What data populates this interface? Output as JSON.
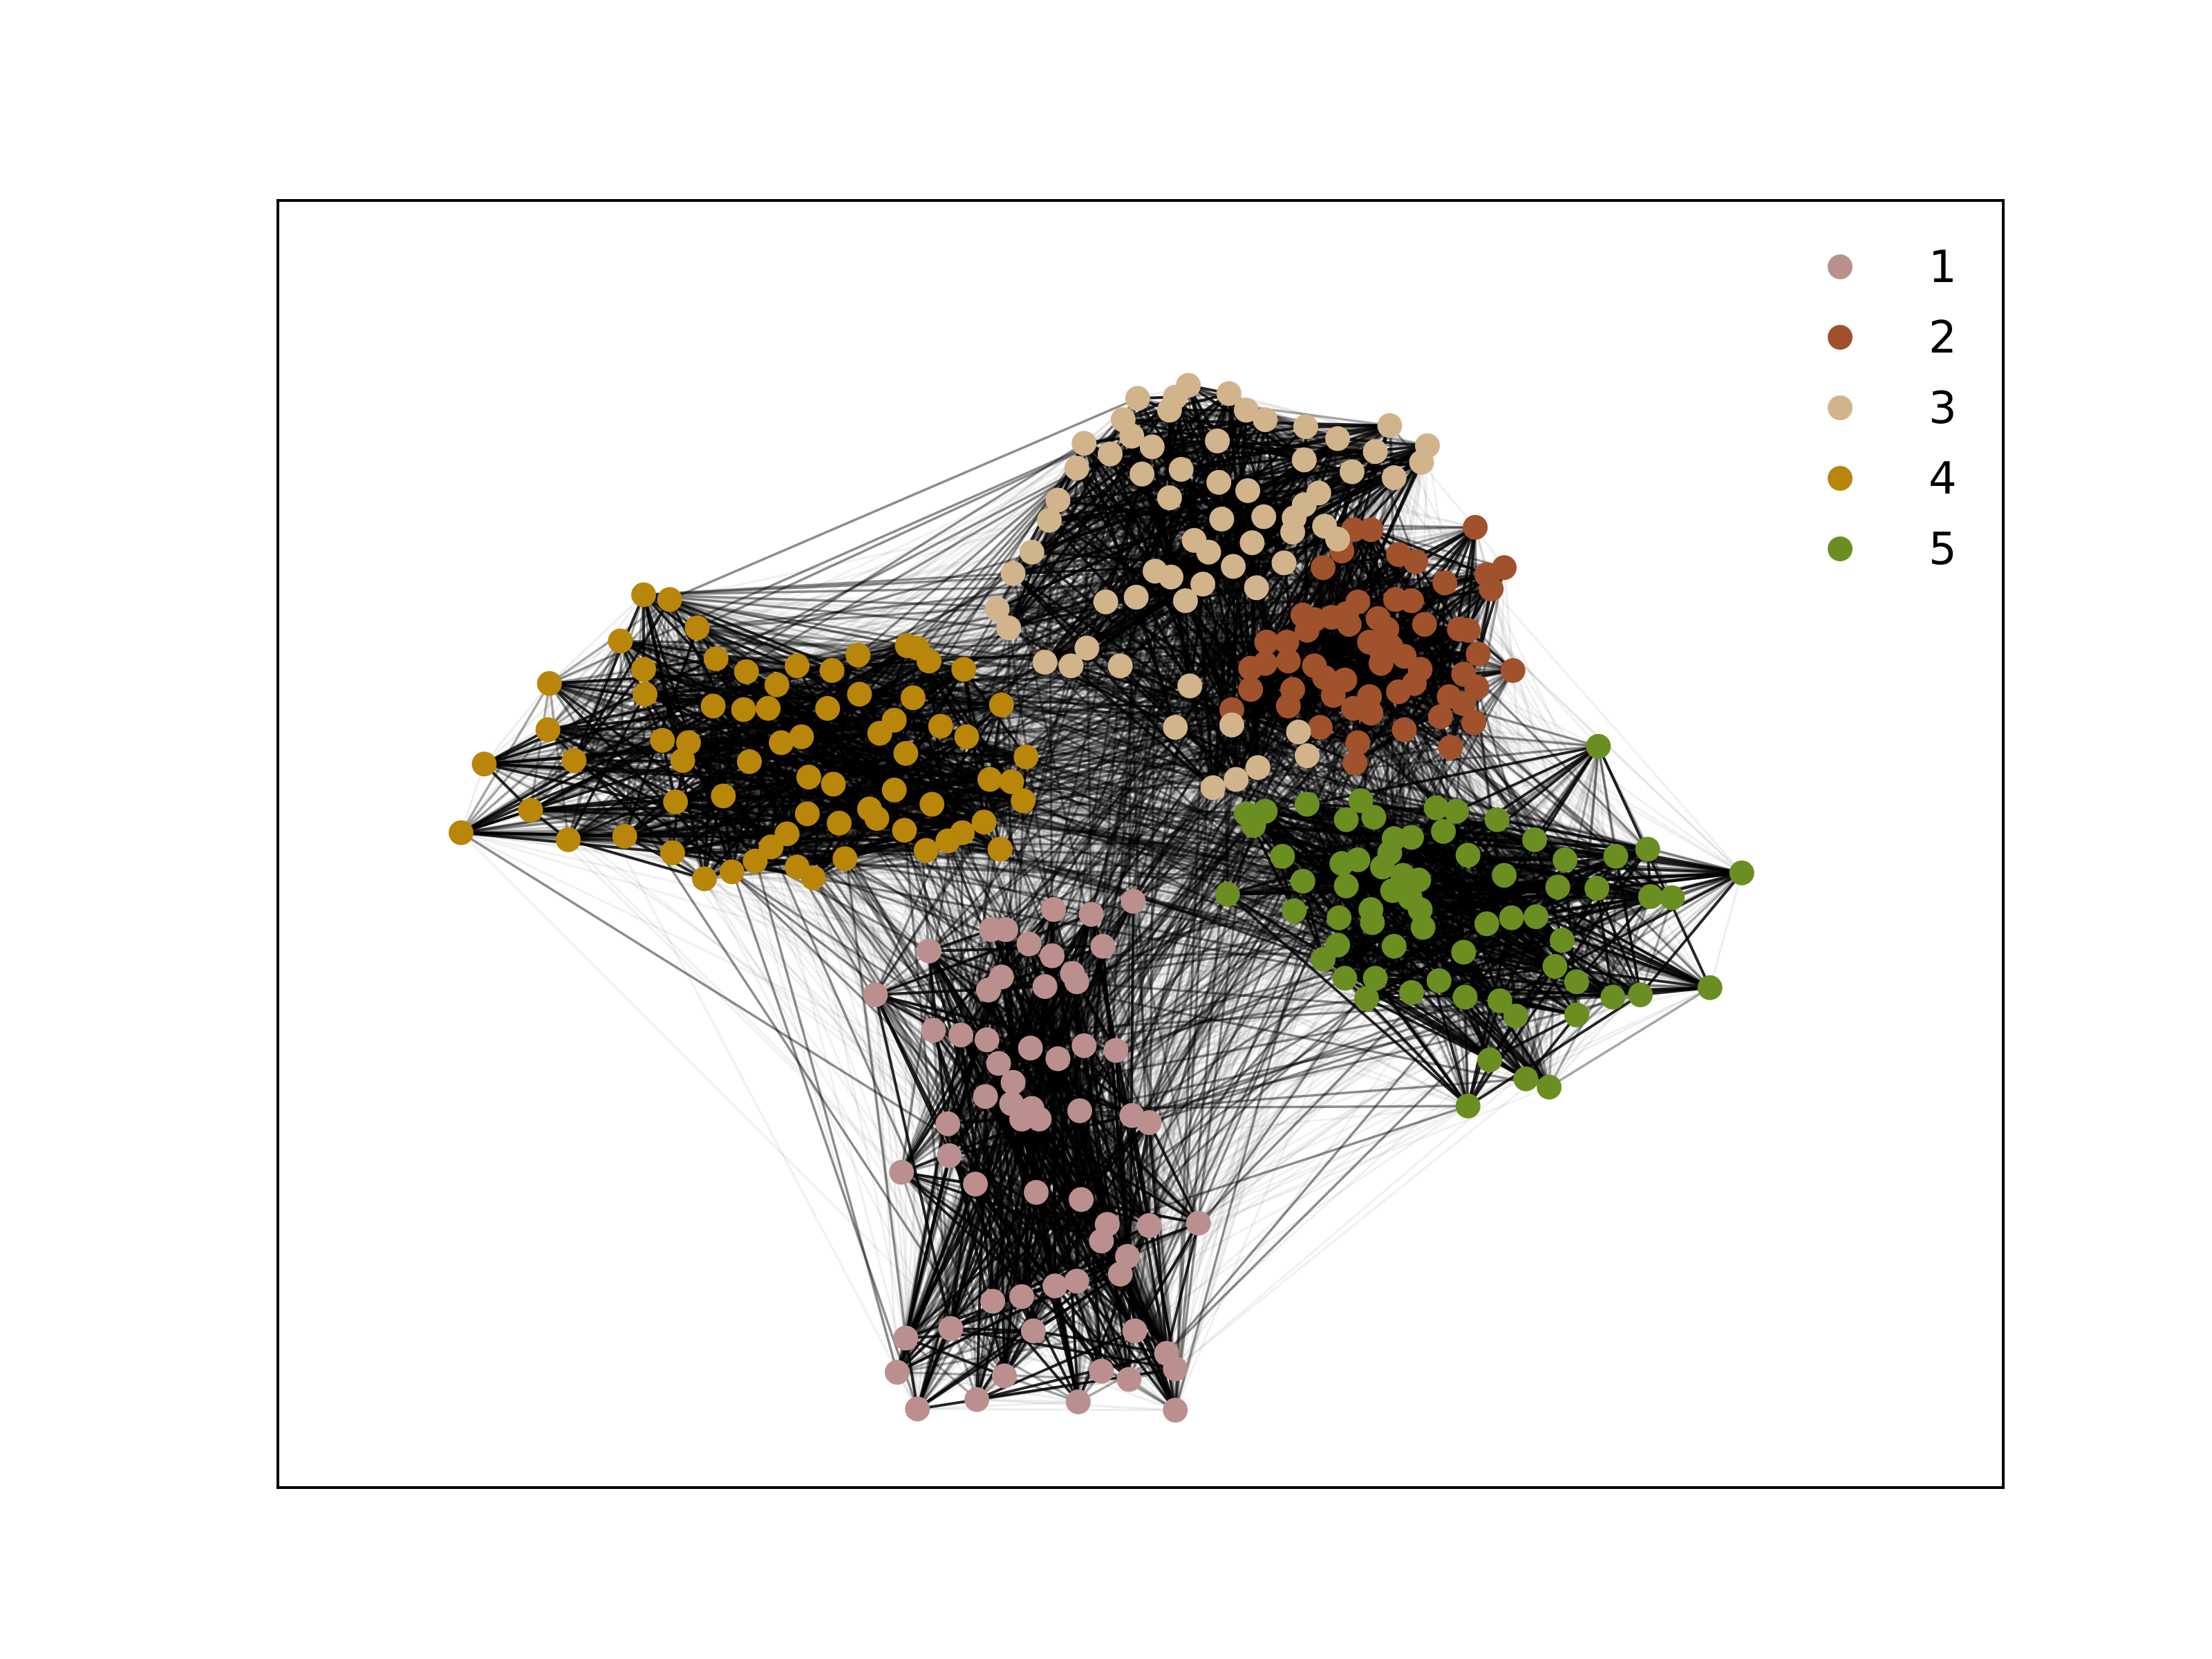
{
  "chart_data": {
    "type": "network",
    "xlim": [
      0,
      100
    ],
    "ylim": [
      0,
      100
    ],
    "legend_position": "top-right",
    "grid": false,
    "axis_ticks": false,
    "communities": [
      {
        "label": "1",
        "color": "#bc8f8f"
      },
      {
        "label": "2",
        "color": "#a0522d"
      },
      {
        "label": "3",
        "color": "#d2b48c"
      },
      {
        "label": "4",
        "color": "#b8860b"
      },
      {
        "label": "5",
        "color": "#6b8e23"
      }
    ],
    "nodes": [
      [
        49.5,
        35.7,
        1
      ],
      [
        46.6,
        34.6,
        1
      ],
      [
        44.0,
        35.0,
        1
      ],
      [
        39.7,
        33.3,
        1
      ],
      [
        40.7,
        33.3,
        1
      ],
      [
        42.3,
        32.1,
        1
      ],
      [
        43.9,
        31.1,
        1
      ],
      [
        47.4,
        31.9,
        1
      ],
      [
        45.3,
        29.6,
        1
      ],
      [
        45.6,
        28.9,
        1
      ],
      [
        43.4,
        28.5,
        1
      ],
      [
        40.4,
        29.3,
        1
      ],
      [
        39.5,
        28.2,
        1
      ],
      [
        35.4,
        31.5,
        1
      ],
      [
        31.7,
        27.8,
        1
      ],
      [
        35.7,
        24.8,
        1
      ],
      [
        37.6,
        24.4,
        1
      ],
      [
        39.4,
        24.0,
        1
      ],
      [
        42.4,
        23.3,
        1
      ],
      [
        46.1,
        23.5,
        1
      ],
      [
        48.3,
        23.1,
        1
      ],
      [
        44.3,
        22.4,
        1
      ],
      [
        40.2,
        22.0,
        1
      ],
      [
        41.2,
        20.4,
        1
      ],
      [
        39.3,
        19.2,
        1
      ],
      [
        41.1,
        18.6,
        1
      ],
      [
        42.5,
        18.2,
        1
      ],
      [
        45.8,
        18.0,
        1
      ],
      [
        49.4,
        17.6,
        1
      ],
      [
        50.6,
        17.0,
        1
      ],
      [
        41.8,
        17.3,
        1
      ],
      [
        43.0,
        17.3,
        1
      ],
      [
        36.7,
        16.9,
        1
      ],
      [
        36.8,
        14.2,
        1
      ],
      [
        33.5,
        12.8,
        1
      ],
      [
        38.6,
        11.8,
        1
      ],
      [
        42.8,
        11.1,
        1
      ],
      [
        45.9,
        10.5,
        1
      ],
      [
        47.7,
        8.4,
        1
      ],
      [
        50.6,
        8.3,
        1
      ],
      [
        54.0,
        8.5,
        1
      ],
      [
        47.3,
        7.0,
        1
      ],
      [
        49.1,
        5.7,
        1
      ],
      [
        48.6,
        4.2,
        1
      ],
      [
        45.6,
        3.6,
        1
      ],
      [
        44.1,
        3.2,
        1
      ],
      [
        41.8,
        2.3,
        1
      ],
      [
        39.8,
        1.9,
        1
      ],
      [
        42.6,
        -0.6,
        1
      ],
      [
        36.9,
        -0.4,
        1
      ],
      [
        33.8,
        -1.2,
        1
      ],
      [
        33.2,
        -4.1,
        1
      ],
      [
        34.6,
        -7.2,
        1
      ],
      [
        38.7,
        -6.4,
        1
      ],
      [
        40.6,
        -4.4,
        1
      ],
      [
        45.7,
        -6.6,
        1
      ],
      [
        47.3,
        -4.0,
        1
      ],
      [
        49.6,
        -0.6,
        1
      ],
      [
        51.8,
        -2.5,
        1
      ],
      [
        52.4,
        -3.8,
        1
      ],
      [
        49.2,
        -4.7,
        1
      ],
      [
        52.4,
        -7.3,
        1
      ],
      [
        62.7,
        54.6,
        2
      ],
      [
        62.6,
        63.9,
        2
      ],
      [
        63.9,
        65.3,
        2
      ],
      [
        64.7,
        67.1,
        2
      ],
      [
        65.9,
        67.1,
        2
      ],
      [
        73.1,
        67.3,
        2
      ],
      [
        73.9,
        63.3,
        2
      ],
      [
        75.1,
        63.9,
        2
      ],
      [
        72.6,
        58.6,
        2
      ],
      [
        67.8,
        65.0,
        2
      ],
      [
        69.0,
        64.4,
        2
      ],
      [
        71.0,
        62.6,
        2
      ],
      [
        67.6,
        61.2,
        2
      ],
      [
        66.6,
        56.9,
        2
      ],
      [
        65.8,
        57.6,
        2
      ],
      [
        63.2,
        59.7,
        2
      ],
      [
        62.0,
        59.5,
        2
      ],
      [
        61.2,
        59.9,
        2
      ],
      [
        61.5,
        58.6,
        2
      ],
      [
        60.1,
        57.6,
        2
      ],
      [
        64.4,
        59.1,
        2
      ],
      [
        64.2,
        60.0,
        2
      ],
      [
        65.0,
        61.0,
        2
      ],
      [
        66.4,
        59.6,
        2
      ],
      [
        67.0,
        58.7,
        2
      ],
      [
        68.7,
        61.1,
        2
      ],
      [
        69.6,
        59.1,
        2
      ],
      [
        72.0,
        58.7,
        2
      ],
      [
        74.2,
        62.1,
        2
      ],
      [
        73.3,
        56.6,
        2
      ],
      [
        72.3,
        54.9,
        2
      ],
      [
        75.7,
        55.2,
        2
      ],
      [
        73.2,
        53.8,
        2
      ],
      [
        70.7,
        51.3,
        2
      ],
      [
        72.3,
        52.4,
        2
      ],
      [
        71.3,
        53.0,
        2
      ],
      [
        68.9,
        54.1,
        2
      ],
      [
        67.8,
        53.4,
        2
      ],
      [
        67.3,
        57.2,
        2
      ],
      [
        66.6,
        55.8,
        2
      ],
      [
        64.1,
        54.4,
        2
      ],
      [
        62.0,
        55.6,
        2
      ],
      [
        60.2,
        56.0,
        2
      ],
      [
        58.7,
        57.6,
        2
      ],
      [
        57.6,
        55.4,
        2
      ],
      [
        57.6,
        53.6,
        2
      ],
      [
        60.5,
        53.6,
        2
      ],
      [
        63.3,
        53.1,
        2
      ],
      [
        65.8,
        53.0,
        2
      ],
      [
        68.2,
        50.2,
        2
      ],
      [
        71.4,
        48.7,
        2
      ],
      [
        73.0,
        50.8,
        2
      ],
      [
        65.0,
        49.1,
        2
      ],
      [
        64.7,
        52.0,
        2
      ],
      [
        69.3,
        55.3,
        2
      ],
      [
        68.2,
        56.4,
        2
      ],
      [
        58.6,
        55.8,
        2
      ],
      [
        65.9,
        51.6,
        2
      ],
      [
        62.4,
        50.4,
        2
      ],
      [
        64.8,
        47.4,
        2
      ],
      [
        60.2,
        52.2,
        2
      ],
      [
        56.3,
        51.9,
        2
      ],
      [
        52.4,
        78.3,
        3
      ],
      [
        49.4,
        75.0,
        3
      ],
      [
        55.3,
        74.6,
        3
      ],
      [
        61.3,
        73.0,
        3
      ],
      [
        64.6,
        72.0,
        3
      ],
      [
        67.5,
        71.5,
        3
      ],
      [
        69.4,
        72.8,
        3
      ],
      [
        69.8,
        74.2,
        3
      ],
      [
        67.2,
        75.9,
        3
      ],
      [
        66.2,
        73.7,
        3
      ],
      [
        63.6,
        74.8,
        3
      ],
      [
        61.4,
        75.8,
        3
      ],
      [
        58.6,
        76.4,
        3
      ],
      [
        57.3,
        77.2,
        3
      ],
      [
        56.1,
        78.6,
        3
      ],
      [
        53.3,
        79.3,
        3
      ],
      [
        52.0,
        77.2,
        3
      ],
      [
        49.8,
        78.2,
        3
      ],
      [
        48.8,
        76.4,
        3
      ],
      [
        50.8,
        74.1,
        3
      ],
      [
        52.8,
        72.2,
        3
      ],
      [
        55.4,
        71.1,
        3
      ],
      [
        57.4,
        70.4,
        3
      ],
      [
        58.5,
        68.2,
        3
      ],
      [
        60.6,
        68.1,
        3
      ],
      [
        57.7,
        66.0,
        3
      ],
      [
        54.7,
        65.2,
        3
      ],
      [
        53.7,
        66.2,
        3
      ],
      [
        52.1,
        63.1,
        3
      ],
      [
        51.0,
        63.6,
        3
      ],
      [
        49.7,
        61.4,
        3
      ],
      [
        47.6,
        61.0,
        3
      ],
      [
        53.1,
        61.1,
        3
      ],
      [
        54.3,
        62.5,
        3
      ],
      [
        56.4,
        64.0,
        3
      ],
      [
        58.0,
        62.2,
        3
      ],
      [
        59.9,
        64.3,
        3
      ],
      [
        60.5,
        66.9,
        3
      ],
      [
        61.3,
        69.2,
        3
      ],
      [
        62.3,
        70.2,
        3
      ],
      [
        62.7,
        67.4,
        3
      ],
      [
        63.6,
        66.3,
        3
      ],
      [
        55.6,
        68.0,
        3
      ],
      [
        52.0,
        69.8,
        3
      ],
      [
        50.1,
        71.8,
        3
      ],
      [
        47.9,
        73.5,
        3
      ],
      [
        46.1,
        74.4,
        3
      ],
      [
        45.6,
        72.3,
        3
      ],
      [
        44.3,
        69.6,
        3
      ],
      [
        43.7,
        67.9,
        3
      ],
      [
        42.5,
        65.2,
        3
      ],
      [
        41.2,
        63.4,
        3
      ],
      [
        40.1,
        60.4,
        3
      ],
      [
        40.9,
        58.8,
        3
      ],
      [
        43.4,
        55.9,
        3
      ],
      [
        45.2,
        55.6,
        3
      ],
      [
        46.3,
        57.1,
        3
      ],
      [
        48.6,
        55.6,
        3
      ],
      [
        53.4,
        53.9,
        3
      ],
      [
        56.3,
        50.6,
        3
      ],
      [
        52.4,
        50.4,
        3
      ],
      [
        60.9,
        50.0,
        3
      ],
      [
        61.5,
        48.0,
        3
      ],
      [
        58.1,
        47.0,
        3
      ],
      [
        56.6,
        46.0,
        3
      ],
      [
        55.0,
        45.3,
        3
      ],
      [
        3.1,
        41.5,
        4
      ],
      [
        4.7,
        47.3,
        4
      ],
      [
        7.9,
        43.4,
        4
      ],
      [
        10.5,
        40.9,
        4
      ],
      [
        14.4,
        41.2,
        4
      ],
      [
        17.7,
        39.8,
        4
      ],
      [
        19.9,
        37.6,
        4
      ],
      [
        21.8,
        38.2,
        4
      ],
      [
        24.5,
        40.3,
        4
      ],
      [
        25.6,
        41.4,
        4
      ],
      [
        26.3,
        38.6,
        4
      ],
      [
        27.4,
        37.7,
        4
      ],
      [
        29.6,
        39.3,
        4
      ],
      [
        29.2,
        42.3,
        4
      ],
      [
        31.8,
        42.7,
        4
      ],
      [
        33.7,
        41.7,
        4
      ],
      [
        35.2,
        40.0,
        4
      ],
      [
        36.7,
        40.8,
        4
      ],
      [
        37.7,
        41.5,
        4
      ],
      [
        40.3,
        40.1,
        4
      ],
      [
        39.2,
        42.4,
        4
      ],
      [
        35.6,
        43.9,
        4
      ],
      [
        33.0,
        45.1,
        4
      ],
      [
        31.3,
        43.5,
        4
      ],
      [
        28.8,
        45.6,
        4
      ],
      [
        27.1,
        46.2,
        4
      ],
      [
        25.2,
        49.1,
        4
      ],
      [
        24.3,
        52.0,
        4
      ],
      [
        22.6,
        51.9,
        4
      ],
      [
        20.5,
        52.2,
        4
      ],
      [
        18.8,
        49.1,
        4
      ],
      [
        17.0,
        49.3,
        4
      ],
      [
        15.8,
        53.2,
        4
      ],
      [
        15.7,
        55.3,
        4
      ],
      [
        14.1,
        57.7,
        4
      ],
      [
        15.7,
        61.6,
        4
      ],
      [
        17.5,
        61.2,
        4
      ],
      [
        19.4,
        58.8,
        4
      ],
      [
        20.7,
        56.2,
        4
      ],
      [
        22.8,
        55.1,
        4
      ],
      [
        24.9,
        54.0,
        4
      ],
      [
        26.3,
        55.6,
        4
      ],
      [
        28.7,
        55.2,
        4
      ],
      [
        30.6,
        53.2,
        4
      ],
      [
        32.0,
        49.9,
        4
      ],
      [
        33.8,
        48.2,
        4
      ],
      [
        33.0,
        51.0,
        4
      ],
      [
        34.3,
        52.9,
        4
      ],
      [
        36.2,
        50.5,
        4
      ],
      [
        38.0,
        49.6,
        4
      ],
      [
        39.6,
        46.0,
        4
      ],
      [
        41.9,
        44.2,
        4
      ],
      [
        41.1,
        45.8,
        4
      ],
      [
        42.1,
        47.9,
        4
      ],
      [
        40.4,
        52.3,
        4
      ],
      [
        37.8,
        55.3,
        4
      ],
      [
        34.6,
        57.1,
        4
      ],
      [
        33.9,
        57.3,
        4
      ],
      [
        35.4,
        56.0,
        4
      ],
      [
        30.5,
        56.5,
        4
      ],
      [
        28.4,
        52.0,
        4
      ],
      [
        26.6,
        49.6,
        4
      ],
      [
        23.0,
        47.5,
        4
      ],
      [
        21.2,
        44.6,
        4
      ],
      [
        17.9,
        44.1,
        4
      ],
      [
        10.9,
        47.6,
        4
      ],
      [
        9.1,
        50.2,
        4
      ],
      [
        9.2,
        54.1,
        4
      ],
      [
        18.4,
        47.6,
        4
      ],
      [
        27.0,
        43.1,
        4
      ],
      [
        23.4,
        39.1,
        4
      ],
      [
        56.0,
        36.3,
        5
      ],
      [
        58.6,
        43.3,
        5
      ],
      [
        57.8,
        42.1,
        5
      ],
      [
        57.3,
        43.1,
        5
      ],
      [
        59.8,
        39.5,
        5
      ],
      [
        61.5,
        43.9,
        5
      ],
      [
        64.2,
        42.6,
        5
      ],
      [
        65.2,
        44.2,
        5
      ],
      [
        66.1,
        42.8,
        5
      ],
      [
        67.5,
        41.0,
        5
      ],
      [
        67.2,
        39.8,
        5
      ],
      [
        68.7,
        41.1,
        5
      ],
      [
        70.4,
        43.6,
        5
      ],
      [
        70.9,
        41.6,
        5
      ],
      [
        71.8,
        43.3,
        5
      ],
      [
        74.6,
        42.6,
        5
      ],
      [
        77.2,
        40.9,
        5
      ],
      [
        79.3,
        39.2,
        5
      ],
      [
        81.6,
        48.8,
        5
      ],
      [
        85.0,
        40.1,
        5
      ],
      [
        82.8,
        39.5,
        5
      ],
      [
        81.5,
        36.8,
        5
      ],
      [
        78.8,
        36.9,
        5
      ],
      [
        75.1,
        37.9,
        5
      ],
      [
        72.6,
        39.6,
        5
      ],
      [
        69.2,
        37.5,
        5
      ],
      [
        68.1,
        37.9,
        5
      ],
      [
        66.7,
        38.6,
        5
      ],
      [
        65.0,
        39.2,
        5
      ],
      [
        63.9,
        38.9,
        5
      ],
      [
        64.2,
        37.0,
        5
      ],
      [
        61.2,
        37.4,
        5
      ],
      [
        60.6,
        34.9,
        5
      ],
      [
        65.9,
        35.0,
        5
      ],
      [
        67.4,
        36.6,
        5
      ],
      [
        68.6,
        36.0,
        5
      ],
      [
        69.5,
        33.5,
        5
      ],
      [
        69.3,
        35.0,
        5
      ],
      [
        67.5,
        31.9,
        5
      ],
      [
        66.0,
        33.9,
        5
      ],
      [
        63.7,
        34.3,
        5
      ],
      [
        63.6,
        32.0,
        5
      ],
      [
        62.6,
        30.8,
        5
      ],
      [
        64.1,
        29.2,
        5
      ],
      [
        65.6,
        27.5,
        5
      ],
      [
        66.2,
        29.2,
        5
      ],
      [
        68.7,
        28.0,
        5
      ],
      [
        70.6,
        29.0,
        5
      ],
      [
        72.3,
        31.4,
        5
      ],
      [
        73.9,
        33.8,
        5
      ],
      [
        75.6,
        34.3,
        5
      ],
      [
        77.3,
        34.4,
        5
      ],
      [
        79.1,
        32.4,
        5
      ],
      [
        78.6,
        30.2,
        5
      ],
      [
        80.1,
        28.9,
        5
      ],
      [
        82.6,
        27.6,
        5
      ],
      [
        84.5,
        27.8,
        5
      ],
      [
        89.3,
        28.4,
        5
      ],
      [
        85.2,
        36.1,
        5
      ],
      [
        86.7,
        36.0,
        5
      ],
      [
        91.5,
        38.1,
        5
      ],
      [
        80.1,
        26.1,
        5
      ],
      [
        74.8,
        27.3,
        5
      ],
      [
        72.4,
        27.6,
        5
      ],
      [
        75.9,
        26.0,
        5
      ],
      [
        74.1,
        22.3,
        5
      ],
      [
        76.6,
        20.7,
        5
      ],
      [
        72.6,
        18.4,
        5
      ],
      [
        78.2,
        20.0,
        5
      ]
    ]
  }
}
